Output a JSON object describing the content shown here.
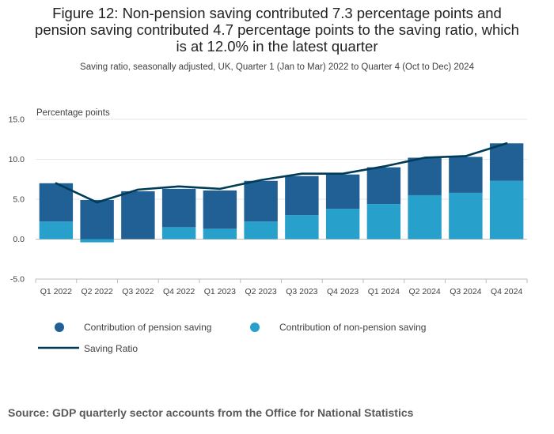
{
  "title_lines": [
    "Figure 12: Non-pension saving contributed 7.3 percentage points and",
    "pension saving contributed 4.7 percentage points to the saving ratio, which",
    "is at 12.0% in the latest quarter"
  ],
  "subtitle": "Saving ratio, seasonally adjusted, UK, Quarter 1 (Jan to Mar) 2022 to Quarter 4 (Oct to Dec) 2024",
  "source": "Source: GDP quarterly sector accounts from the Office for National Statistics",
  "colors": {
    "pension": "#206095",
    "non_pension": "#27A0CC",
    "saving_ratio": "#003C57"
  },
  "chart_data": {
    "type": "bar",
    "stacked": true,
    "ylabel": "Percentage points",
    "ylim": [
      -5,
      15
    ],
    "yticks": [
      15,
      10,
      5,
      0,
      -5
    ],
    "ytick_labels": [
      "15.0",
      "10.0",
      "5.0",
      "0.0",
      "-5.0"
    ],
    "grid": true,
    "categories": [
      "Q1 2022",
      "Q2 2022",
      "Q3 2022",
      "Q4 2022",
      "Q1 2023",
      "Q2 2023",
      "Q3 2023",
      "Q4 2023",
      "Q1 2024",
      "Q2 2024",
      "Q3 2024",
      "Q4 2024"
    ],
    "series": [
      {
        "name": "Contribution of pension saving",
        "type": "bar",
        "color": "#206095",
        "values": [
          4.8,
          4.9,
          6.0,
          4.8,
          4.8,
          5.1,
          4.9,
          4.3,
          4.6,
          4.7,
          4.5,
          4.7
        ]
      },
      {
        "name": "Contribution of non-pension saving",
        "type": "bar",
        "color": "#27A0CC",
        "values": [
          2.2,
          -0.4,
          0.0,
          1.5,
          1.3,
          2.2,
          3.0,
          3.8,
          4.4,
          5.5,
          5.8,
          7.3
        ]
      },
      {
        "name": "Saving Ratio",
        "type": "line",
        "color": "#003C57",
        "values": [
          7.0,
          4.6,
          6.2,
          6.6,
          6.3,
          7.4,
          8.2,
          8.2,
          9.1,
          10.2,
          10.4,
          12.0
        ]
      }
    ],
    "legend_position": "bottom"
  }
}
